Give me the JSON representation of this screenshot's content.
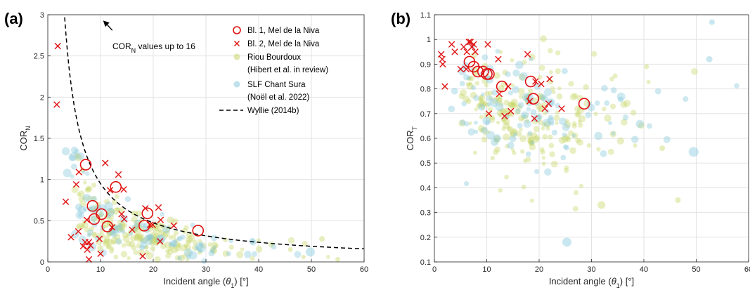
{
  "colors": {
    "bl1": "#e01010",
    "bl2": "#e01010",
    "riou": "#c9d66a",
    "slf": "#88c9dd",
    "wyllie": "#000000"
  },
  "chart_data": [
    {
      "type": "scatter",
      "panel_label": "(a)",
      "xlabel_main": "Incident angle (",
      "xlabel_sym": "θ",
      "xlabel_sub": "1",
      "xlabel_end": ") [°]",
      "ylabel_main": "COR",
      "ylabel_sub": "N",
      "xlim": [
        0,
        60
      ],
      "ylim": [
        0,
        3
      ],
      "xticks": [
        0,
        10,
        20,
        30,
        40,
        50,
        60
      ],
      "yticks": [
        0,
        0.5,
        1,
        1.5,
        2,
        2.5,
        3
      ],
      "grid": true,
      "legend_position": "top-right",
      "annotation": {
        "text_main": "COR",
        "text_sub": "N",
        "text_rest": " values up to 16",
        "arrow_to": [
          10.5,
          2.93
        ]
      },
      "legend": [
        {
          "key": "bl1",
          "marker": "circle",
          "line1": "Bl. 1, Mel de la Niva"
        },
        {
          "key": "bl2",
          "marker": "x",
          "line1": "Bl. 2, Mel de la Niva"
        },
        {
          "key": "riou",
          "marker": "dot",
          "line1": "Riou Bourdoux",
          "line2": "(Hibert et al. in review)"
        },
        {
          "key": "slf",
          "marker": "dot",
          "line1": "SLF Chant Sura",
          "line2": "(Noël et al. 2022)"
        },
        {
          "key": "wyllie",
          "marker": "dash",
          "line1": "Wyllie (2014b)"
        }
      ],
      "series": [
        {
          "key": "bl1",
          "points": [
            [
              7.2,
              1.18
            ],
            [
              8.5,
              0.68
            ],
            [
              8.8,
              0.52
            ],
            [
              10.2,
              0.58
            ],
            [
              11.3,
              0.43
            ],
            [
              12.9,
              0.91
            ],
            [
              18.3,
              0.44
            ],
            [
              18.9,
              0.59
            ],
            [
              28.5,
              0.38
            ]
          ]
        },
        {
          "key": "bl2",
          "points": [
            [
              1.9,
              2.62
            ],
            [
              1.7,
              1.91
            ],
            [
              3.4,
              0.73
            ],
            [
              4.4,
              0.3
            ],
            [
              5.4,
              0.94
            ],
            [
              5.9,
              1.09
            ],
            [
              5.8,
              0.37
            ],
            [
              6.7,
              0.19
            ],
            [
              7.1,
              0.24
            ],
            [
              7.5,
              0.15
            ],
            [
              7.8,
              0.24
            ],
            [
              7.8,
              0.03
            ],
            [
              8.1,
              0.2
            ],
            [
              7.4,
              0.51
            ],
            [
              9.8,
              0.28
            ],
            [
              10.0,
              0.1
            ],
            [
              10.9,
              1.2
            ],
            [
              11.8,
              0.87
            ],
            [
              12.2,
              0.42
            ],
            [
              13.4,
              1.06
            ],
            [
              14.0,
              0.58
            ],
            [
              14.4,
              0.88
            ],
            [
              14.5,
              0.52
            ],
            [
              16.0,
              0.39
            ],
            [
              18.0,
              0.07
            ],
            [
              18.5,
              0.65
            ],
            [
              19.4,
              0.45
            ],
            [
              19.9,
              0.45
            ],
            [
              21.0,
              0.66
            ],
            [
              21.4,
              0.51
            ],
            [
              21.3,
              0.25
            ],
            [
              23.9,
              0.44
            ]
          ]
        },
        {
          "key": "wyllie",
          "curve": "9.5 / x"
        }
      ]
    },
    {
      "type": "scatter",
      "panel_label": "(b)",
      "xlabel_main": "Incident angle (",
      "xlabel_sym": "θ",
      "xlabel_sub": "1",
      "xlabel_end": ") [°]",
      "ylabel_main": "COR",
      "ylabel_sub": "T",
      "xlim": [
        0,
        60
      ],
      "ylim": [
        0.1,
        1.1
      ],
      "xticks": [
        0,
        10,
        20,
        30,
        40,
        50,
        60
      ],
      "yticks": [
        0.1,
        0.2,
        0.3,
        0.4,
        0.5,
        0.6,
        0.7,
        0.8,
        0.9,
        1,
        1.1
      ],
      "grid": true,
      "series": [
        {
          "key": "bl1",
          "points": [
            [
              6.7,
              0.91
            ],
            [
              7.5,
              0.89
            ],
            [
              8.3,
              0.87
            ],
            [
              9.3,
              0.87
            ],
            [
              10.0,
              0.86
            ],
            [
              10.4,
              0.86
            ],
            [
              12.9,
              0.81
            ],
            [
              18.4,
              0.83
            ],
            [
              18.9,
              0.76
            ],
            [
              28.6,
              0.74
            ]
          ]
        },
        {
          "key": "bl2",
          "points": [
            [
              1.3,
              0.94
            ],
            [
              1.5,
              0.92
            ],
            [
              1.6,
              0.9
            ],
            [
              2.0,
              0.81
            ],
            [
              3.3,
              0.98
            ],
            [
              3.9,
              0.95
            ],
            [
              5.0,
              0.88
            ],
            [
              5.6,
              0.97
            ],
            [
              6.2,
              0.95
            ],
            [
              6.6,
              0.99
            ],
            [
              6.9,
              0.99
            ],
            [
              7.2,
              0.97
            ],
            [
              7.5,
              0.98
            ],
            [
              7.8,
              0.95
            ],
            [
              6.1,
              0.88
            ],
            [
              10.2,
              0.98
            ],
            [
              10.4,
              0.7
            ],
            [
              12.2,
              0.92
            ],
            [
              12.4,
              0.78
            ],
            [
              13.4,
              0.69
            ],
            [
              14.1,
              0.81
            ],
            [
              14.6,
              0.71
            ],
            [
              17.8,
              0.94
            ],
            [
              18.2,
              0.75
            ],
            [
              19.1,
              0.68
            ],
            [
              19.3,
              0.83
            ],
            [
              20.4,
              0.82
            ],
            [
              21.1,
              0.72
            ],
            [
              21.8,
              0.74
            ],
            [
              22.0,
              0.84
            ],
            [
              24.3,
              0.72
            ]
          ]
        }
      ]
    }
  ]
}
